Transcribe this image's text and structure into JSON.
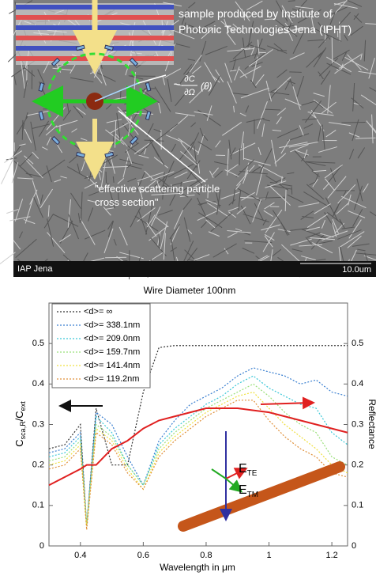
{
  "image": {
    "caption": "sample produced by Institute of Photonic Technologies Jena (IPHT)",
    "formula": {
      "prefix": "~",
      "numerator": "∂C",
      "denominator": "∂Ω",
      "argument": "(θ)"
    },
    "note": "\"effective scattering particle cross section\"",
    "footer_left": "IAP Jena",
    "footer_right": "10.0um"
  },
  "chart_data": {
    "type": "line",
    "title": "Wire Diameter 100nm",
    "x_label": "Wavelength in μm",
    "y_label": "C",
    "y_label_sub": "sca,R",
    "y_label_tail": "/C",
    "y_label_tail_sub": "ext",
    "y2_label": "Reflectance",
    "x": [
      0.3,
      0.35,
      0.4,
      0.42,
      0.45,
      0.5,
      0.55,
      0.6,
      0.65,
      0.7,
      0.75,
      0.8,
      0.85,
      0.9,
      0.95,
      1.0,
      1.05,
      1.1,
      1.15,
      1.2,
      1.25
    ],
    "xlim": [
      0.3,
      1.25
    ],
    "xticks": [
      0.4,
      0.6,
      0.8,
      1,
      1.2
    ],
    "ylim": [
      0,
      0.6
    ],
    "yticks": [
      0,
      0.1,
      0.2,
      0.3,
      0.4,
      0.5
    ],
    "y2lim": [
      0,
      0.6
    ],
    "y2ticks": [
      0,
      0.1,
      0.2,
      0.3,
      0.4,
      0.5
    ],
    "series": [
      {
        "name": "<d>= ∞",
        "color": "#333333",
        "dash": true,
        "values": [
          0.24,
          0.25,
          0.3,
          0.05,
          0.34,
          0.2,
          0.2,
          0.38,
          0.49,
          0.495,
          0.495,
          0.495,
          0.495,
          0.495,
          0.495,
          0.495,
          0.495,
          0.495,
          0.495,
          0.495,
          0.495
        ]
      },
      {
        "name": "<d>= 338.1nm",
        "color": "#3a7fd0",
        "dash": true,
        "values": [
          0.23,
          0.24,
          0.28,
          0.05,
          0.33,
          0.3,
          0.22,
          0.15,
          0.26,
          0.31,
          0.35,
          0.37,
          0.39,
          0.42,
          0.44,
          0.43,
          0.42,
          0.4,
          0.41,
          0.38,
          0.37
        ]
      },
      {
        "name": "<d>= 209.0nm",
        "color": "#3cc8d8",
        "dash": true,
        "values": [
          0.22,
          0.23,
          0.27,
          0.05,
          0.32,
          0.28,
          0.2,
          0.15,
          0.25,
          0.29,
          0.32,
          0.35,
          0.37,
          0.4,
          0.42,
          0.39,
          0.37,
          0.35,
          0.34,
          0.28,
          0.25
        ]
      },
      {
        "name": "<d>= 159.7nm",
        "color": "#9be07a",
        "dash": true,
        "values": [
          0.21,
          0.22,
          0.26,
          0.05,
          0.3,
          0.27,
          0.2,
          0.15,
          0.24,
          0.28,
          0.31,
          0.34,
          0.36,
          0.38,
          0.4,
          0.37,
          0.33,
          0.3,
          0.28,
          0.22,
          0.2
        ]
      },
      {
        "name": "<d>= 141.4nm",
        "color": "#f0e040",
        "dash": true,
        "values": [
          0.2,
          0.21,
          0.25,
          0.05,
          0.29,
          0.26,
          0.19,
          0.14,
          0.23,
          0.27,
          0.3,
          0.33,
          0.35,
          0.37,
          0.38,
          0.34,
          0.3,
          0.27,
          0.24,
          0.2,
          0.18
        ]
      },
      {
        "name": "<d>= 119.2nm",
        "color": "#e0903a",
        "dash": true,
        "values": [
          0.19,
          0.2,
          0.24,
          0.04,
          0.28,
          0.25,
          0.18,
          0.14,
          0.22,
          0.26,
          0.29,
          0.32,
          0.34,
          0.36,
          0.36,
          0.31,
          0.27,
          0.24,
          0.22,
          0.18,
          0.17
        ]
      },
      {
        "color": "#e02020",
        "dash": false,
        "axis": "y2",
        "values": [
          0.15,
          0.17,
          0.19,
          0.2,
          0.2,
          0.24,
          0.26,
          0.29,
          0.31,
          0.32,
          0.33,
          0.34,
          0.34,
          0.34,
          0.335,
          0.33,
          0.32,
          0.31,
          0.3,
          0.29,
          0.28
        ]
      }
    ],
    "annotations": [
      {
        "text": "E",
        "sub": "TE"
      },
      {
        "text": "E",
        "sub": "TM"
      }
    ]
  }
}
